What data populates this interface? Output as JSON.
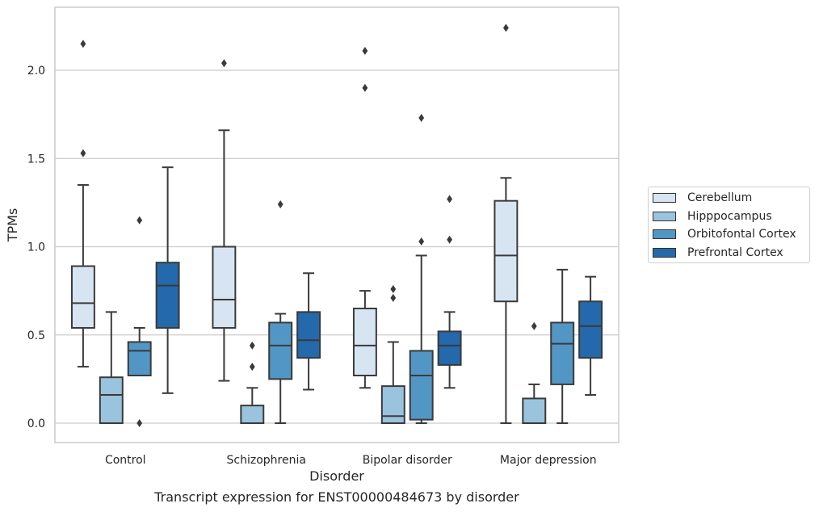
{
  "caption": "Transcript expression for ENST00000484673 by disorder",
  "chart_data": {
    "type": "box",
    "xlabel": "Disorder",
    "ylabel": "TPMs",
    "ylim": [
      -0.1,
      2.35
    ],
    "yticks": [
      0.0,
      0.5,
      1.0,
      1.5,
      2.0
    ],
    "ytick_labels": [
      "0.0",
      "0.5",
      "1.0",
      "1.5",
      "2.0"
    ],
    "grid": "horizontal",
    "legend_position": "right",
    "categories": [
      "Control",
      "Schizophrenia",
      "Bipolar disorder",
      "Major depression"
    ],
    "series": [
      {
        "name": "Cerebellum",
        "color": "#d7e5f2",
        "boxes": [
          {
            "whislo": 0.32,
            "q1": 0.54,
            "med": 0.68,
            "q3": 0.89,
            "whishi": 1.35,
            "fliers": [
              1.53,
              2.15
            ]
          },
          {
            "whislo": 0.24,
            "q1": 0.54,
            "med": 0.7,
            "q3": 1.0,
            "whishi": 1.66,
            "fliers": [
              2.04
            ]
          },
          {
            "whislo": 0.2,
            "q1": 0.27,
            "med": 0.44,
            "q3": 0.65,
            "whishi": 0.75,
            "fliers": [
              1.9,
              2.11
            ]
          },
          {
            "whislo": 0.0,
            "q1": 0.69,
            "med": 0.95,
            "q3": 1.26,
            "whishi": 1.39,
            "fliers": [
              2.24
            ]
          }
        ]
      },
      {
        "name": "Hipppocampus",
        "color": "#9ac3dd",
        "boxes": [
          {
            "whislo": 0.0,
            "q1": 0.0,
            "med": 0.16,
            "q3": 0.26,
            "whishi": 0.63,
            "fliers": []
          },
          {
            "whislo": 0.0,
            "q1": 0.0,
            "med": 0.0,
            "q3": 0.1,
            "whishi": 0.2,
            "fliers": [
              0.32,
              0.44
            ]
          },
          {
            "whislo": 0.0,
            "q1": 0.0,
            "med": 0.04,
            "q3": 0.21,
            "whishi": 0.46,
            "fliers": [
              0.71,
              0.76
            ]
          },
          {
            "whislo": 0.0,
            "q1": 0.0,
            "med": 0.0,
            "q3": 0.14,
            "whishi": 0.22,
            "fliers": [
              0.55
            ]
          }
        ]
      },
      {
        "name": "Orbitofontal Cortex",
        "color": "#5296c5",
        "boxes": [
          {
            "whislo": 0.27,
            "q1": 0.27,
            "med": 0.41,
            "q3": 0.46,
            "whishi": 0.54,
            "fliers": [
              0.0,
              1.15
            ]
          },
          {
            "whislo": 0.0,
            "q1": 0.25,
            "med": 0.44,
            "q3": 0.57,
            "whishi": 0.62,
            "fliers": [
              1.24
            ]
          },
          {
            "whislo": 0.0,
            "q1": 0.02,
            "med": 0.27,
            "q3": 0.41,
            "whishi": 0.95,
            "fliers": [
              1.03,
              1.73
            ]
          },
          {
            "whislo": 0.0,
            "q1": 0.22,
            "med": 0.45,
            "q3": 0.57,
            "whishi": 0.87,
            "fliers": []
          }
        ]
      },
      {
        "name": "Prefrontal Cortex",
        "color": "#2369ab",
        "boxes": [
          {
            "whislo": 0.17,
            "q1": 0.54,
            "med": 0.78,
            "q3": 0.91,
            "whishi": 1.45,
            "fliers": []
          },
          {
            "whislo": 0.19,
            "q1": 0.37,
            "med": 0.47,
            "q3": 0.63,
            "whishi": 0.85,
            "fliers": []
          },
          {
            "whislo": 0.2,
            "q1": 0.33,
            "med": 0.44,
            "q3": 0.52,
            "whishi": 0.63,
            "fliers": [
              1.04,
              1.27
            ]
          },
          {
            "whislo": 0.16,
            "q1": 0.37,
            "med": 0.55,
            "q3": 0.69,
            "whishi": 0.83,
            "fliers": []
          }
        ]
      }
    ]
  }
}
